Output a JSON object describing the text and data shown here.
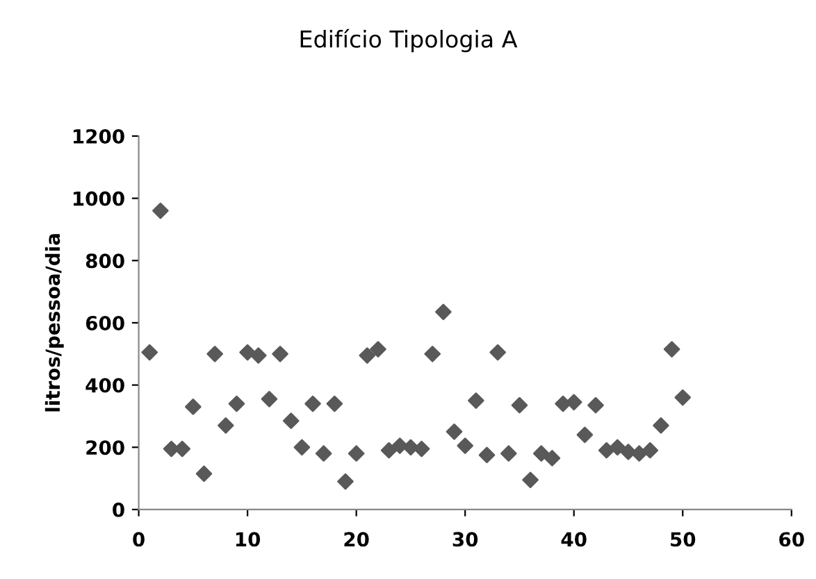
{
  "chart_data": {
    "type": "scatter",
    "title": "Edifício Tipologia A",
    "ylabel": "litros/pessoa/dia",
    "x": [
      1,
      2,
      3,
      4,
      5,
      6,
      7,
      8,
      9,
      10,
      11,
      12,
      13,
      14,
      15,
      16,
      17,
      18,
      19,
      20,
      21,
      22,
      23,
      24,
      25,
      26,
      27,
      28,
      29,
      30,
      31,
      32,
      33,
      34,
      35,
      36,
      37,
      38,
      39,
      40,
      41,
      42,
      43,
      44,
      45,
      46,
      47,
      48,
      49,
      50
    ],
    "series": [
      {
        "color": "#595959",
        "values": [
          505,
          960,
          195,
          195,
          330,
          115,
          500,
          270,
          340,
          505,
          495,
          355,
          500,
          285,
          200,
          340,
          180,
          340,
          90,
          180,
          495,
          515,
          190,
          205,
          200,
          195,
          500,
          635,
          250,
          205,
          350,
          175,
          505,
          180,
          335,
          95,
          180,
          165,
          340,
          345,
          240,
          335,
          190,
          200,
          185,
          180,
          190,
          270,
          515,
          360
        ]
      }
    ],
    "xlim": [
      0,
      60
    ],
    "xticks": [
      0,
      10,
      20,
      30,
      40,
      50,
      60
    ],
    "ylim": [
      0,
      1200
    ],
    "yticks": [
      0,
      200,
      400,
      600,
      800,
      1000,
      1200
    ],
    "marker": "diamond",
    "grid": false,
    "legend": false
  }
}
